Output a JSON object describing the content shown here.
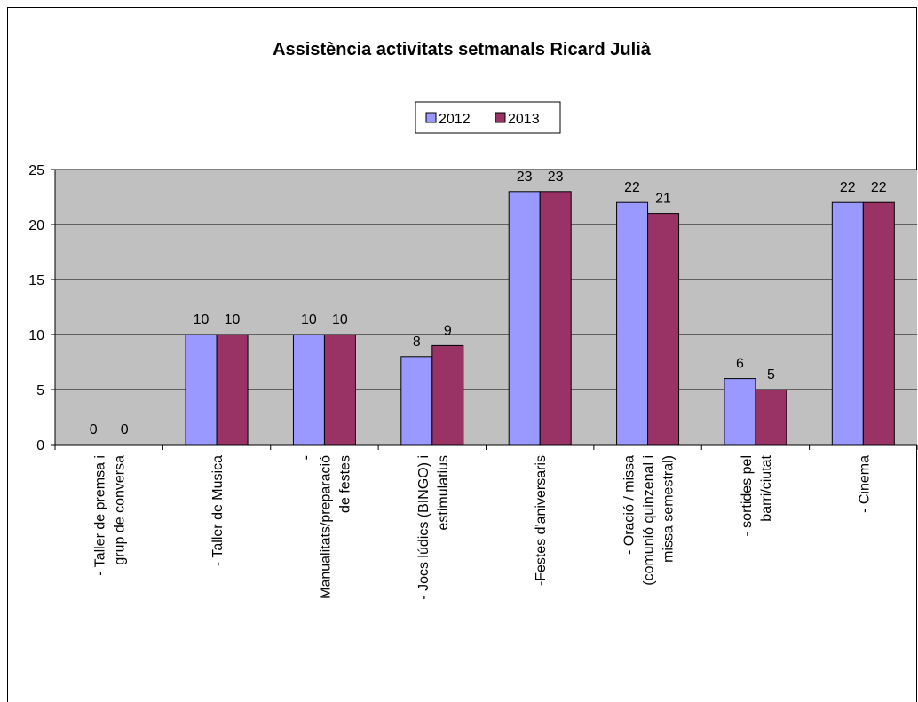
{
  "chart_data": {
    "type": "bar",
    "title": "Assistència activitats setmanals Ricard Julià",
    "categories": [
      [
        "- Taller de premsa i",
        "grup de conversa"
      ],
      [
        "- Taller de Musica"
      ],
      [
        "-",
        "Manualitats/preparació",
        "de festes"
      ],
      [
        "- Jocs lúdics (BINGO) i",
        "estimulatius"
      ],
      [
        "-Festes d'aniversaris"
      ],
      [
        "- Oració / missa",
        "(comunió quinzenal i",
        "missa semestral)"
      ],
      [
        "- sortides pel",
        "barri/ciutat"
      ],
      [
        "- Cinema"
      ]
    ],
    "series": [
      {
        "name": "2012",
        "color": "#9999ff",
        "values": [
          0,
          10,
          10,
          8,
          23,
          22,
          6,
          22
        ]
      },
      {
        "name": "2013",
        "color": "#993366",
        "values": [
          0,
          10,
          10,
          9,
          23,
          21,
          5,
          22
        ]
      }
    ],
    "ylim": [
      0,
      25
    ],
    "yticks": [
      0,
      5,
      10,
      15,
      20,
      25
    ],
    "grid": true,
    "legend": "top"
  }
}
